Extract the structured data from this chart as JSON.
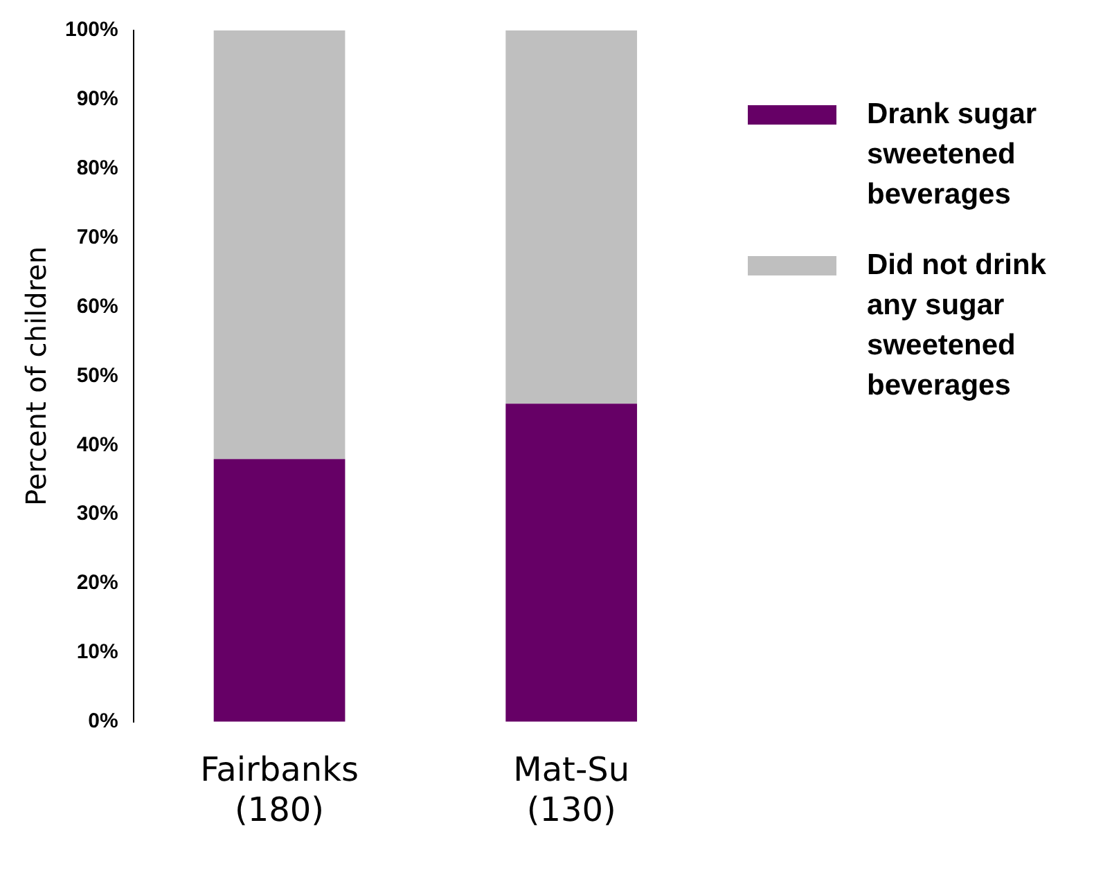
{
  "chart_data": {
    "type": "bar",
    "stacked": true,
    "ylabel": "Percent of children",
    "categories": [
      "Fairbanks (180)",
      "Mat-Su (130)"
    ],
    "series": [
      {
        "name": "Drank sugar sweetened beverages",
        "color": "#660066",
        "values": [
          38,
          46
        ]
      },
      {
        "name": "Did not drink any sugar sweetened beverages",
        "color": "#bfbfbf",
        "values": [
          62,
          54
        ]
      }
    ],
    "ylim": [
      0,
      100
    ],
    "yticks": [
      {
        "value": 0,
        "label": "0%"
      },
      {
        "value": 10,
        "label": "10%"
      },
      {
        "value": 20,
        "label": "20%"
      },
      {
        "value": 30,
        "label": "30%"
      },
      {
        "value": 40,
        "label": "40%"
      },
      {
        "value": 50,
        "label": "50%"
      },
      {
        "value": 60,
        "label": "60%"
      },
      {
        "value": 70,
        "label": "70%"
      },
      {
        "value": 80,
        "label": "80%"
      },
      {
        "value": 90,
        "label": "90%"
      },
      {
        "value": 100,
        "label": "100%"
      }
    ],
    "grid": false,
    "legend": "right"
  }
}
